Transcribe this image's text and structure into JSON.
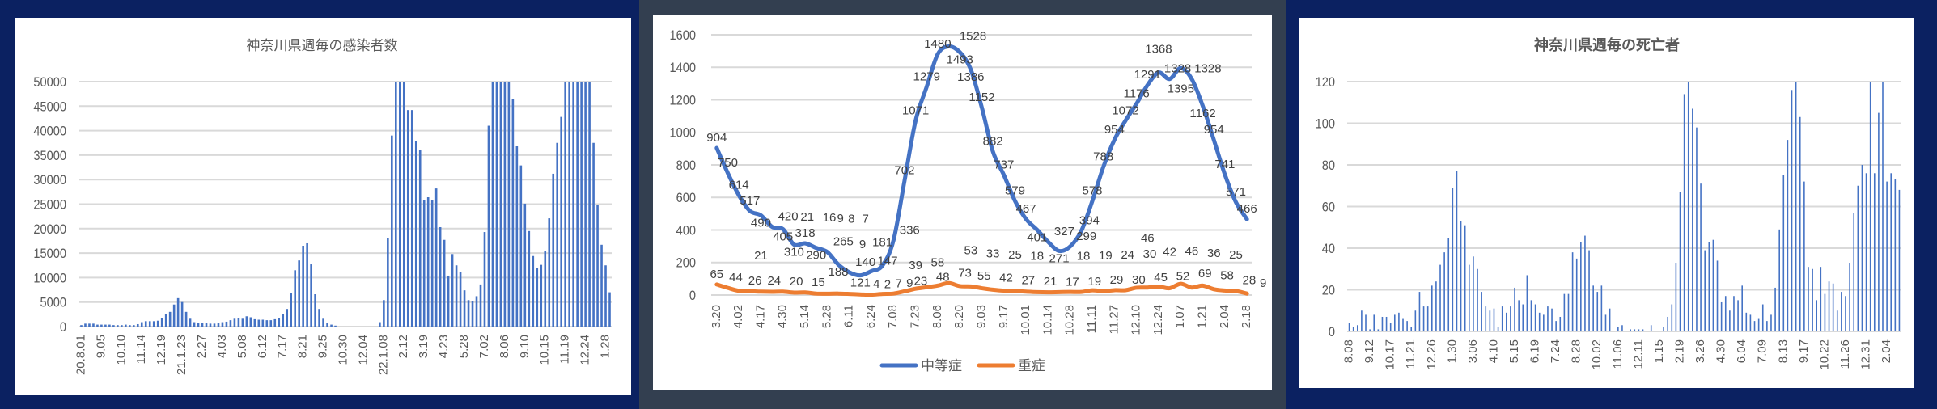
{
  "chart_data": [
    {
      "type": "bar",
      "title": "神奈川県週毎の感染者数",
      "xlabel": "",
      "ylabel": "",
      "ylim": [
        0,
        50000
      ],
      "ytick_step": 5000,
      "grid": true,
      "color": "#4472c4",
      "x_tick_labels": [
        "20.8.01",
        "9.05",
        "10.10",
        "11.14",
        "12.19",
        "21.1.23",
        "2.27",
        "4.03",
        "5.08",
        "6.12",
        "7.17",
        "8.21",
        "9.25",
        "10.30",
        "12.04",
        "22.1.08",
        "2.12",
        "3.19",
        "4.23",
        "5.28",
        "7.02",
        "8.06",
        "9.10",
        "10.15",
        "11.19",
        "12.24",
        "1.28"
      ],
      "label_every": 5,
      "values": [
        300,
        600,
        600,
        600,
        400,
        400,
        400,
        400,
        300,
        300,
        300,
        400,
        300,
        300,
        500,
        900,
        1100,
        1100,
        1100,
        1200,
        1800,
        2600,
        3000,
        4500,
        5800,
        5000,
        3000,
        1600,
        900,
        800,
        800,
        700,
        600,
        600,
        700,
        900,
        1000,
        1300,
        1600,
        1700,
        1600,
        2100,
        1900,
        1500,
        1400,
        1400,
        1300,
        1300,
        1500,
        1800,
        2600,
        3600,
        6900,
        11500,
        13500,
        16500,
        17000,
        12700,
        6600,
        3600,
        1600,
        800,
        400,
        200,
        0,
        0,
        0,
        0,
        0,
        0,
        0,
        0,
        0,
        0,
        900,
        5400,
        18000,
        39000,
        50000,
        50000,
        50000,
        44200,
        44200,
        37800,
        36000,
        25800,
        26400,
        25800,
        28200,
        20300,
        17700,
        10400,
        14800,
        12500,
        11200,
        7400,
        5400,
        5200,
        6200,
        8600,
        19300,
        41000,
        50000,
        50000,
        50000,
        50000,
        50000,
        46500,
        36800,
        32900,
        25100,
        19500,
        14400,
        12000,
        12600,
        15400,
        22100,
        31200,
        37500,
        42800,
        50000,
        50000,
        50000,
        50000,
        50000,
        50000,
        50000,
        37500,
        24800,
        16700,
        12500,
        7000
      ]
    },
    {
      "type": "line",
      "title": "",
      "ylim": [
        0,
        1600
      ],
      "ytick_step": 200,
      "grid": true,
      "legend_position": "bottom",
      "x_tick_labels": [
        "3.20",
        "4.02",
        "4.17",
        "4.30",
        "5.14",
        "5.28",
        "6.11",
        "6.24",
        "7.08",
        "7.23",
        "8.06",
        "8.20",
        "9.03",
        "9.17",
        "10.01",
        "10.14",
        "10.28",
        "11.11",
        "11.27",
        "12.10",
        "12.24",
        "1.07",
        "1.21",
        "2.04",
        "2.18"
      ],
      "label_every": 2,
      "series": [
        {
          "name": "中等症",
          "color": "#4472c4",
          "values": [
            904,
            750,
            614,
            517,
            490,
            420,
            405,
            310,
            318,
            290,
            265,
            188,
            140,
            121,
            147,
            181,
            336,
            702,
            1071,
            1279,
            1480,
            1528,
            1493,
            1386,
            1152,
            882,
            737,
            579,
            467,
            401,
            327,
            271,
            299,
            394,
            578,
            788,
            954,
            1072,
            1176,
            1291,
            1368,
            1328,
            1395,
            1328,
            1162,
            954,
            741,
            571,
            466
          ]
        },
        {
          "name": "重症",
          "color": "#ed7d31",
          "values": [
            65,
            44,
            26,
            24,
            21,
            20,
            21,
            15,
            16,
            9,
            8,
            9,
            7,
            4,
            2,
            7,
            9,
            23,
            39,
            48,
            58,
            73,
            55,
            53,
            42,
            33,
            27,
            25,
            21,
            18,
            17,
            18,
            19,
            19,
            29,
            24,
            30,
            30,
            45,
            46,
            52,
            42,
            69,
            46,
            58,
            36,
            28,
            25,
            9
          ]
        }
      ]
    },
    {
      "type": "bar",
      "title": "神奈川県週毎の死亡者",
      "ylim": [
        0,
        120
      ],
      "ytick_step": 20,
      "grid": true,
      "color": "#4472c4",
      "x_tick_labels": [
        "8.08",
        "9.12",
        "10.17",
        "11.21",
        "12.26",
        "1.30",
        "3.06",
        "4.10",
        "5.15",
        "6.19",
        "7.24",
        "8.28",
        "10.02",
        "11.06",
        "12.11",
        "1.15",
        "2.19",
        "3.26",
        "4.30",
        "6.04",
        "7.09",
        "8.13",
        "9.17",
        "10.22",
        "11.26",
        "12.31",
        "2.04"
      ],
      "label_every": 5,
      "values": [
        4,
        2,
        3,
        10,
        8,
        1,
        8,
        1,
        7,
        7,
        4,
        8,
        9,
        6,
        5,
        2,
        10,
        19,
        12,
        12,
        22,
        24,
        32,
        38,
        45,
        69,
        77,
        53,
        51,
        32,
        36,
        30,
        19,
        12,
        10,
        11,
        2,
        12,
        9,
        12,
        21,
        15,
        13,
        27,
        15,
        13,
        9,
        8,
        12,
        11,
        5,
        7,
        18,
        18,
        38,
        35,
        43,
        46,
        39,
        22,
        19,
        22,
        8,
        11,
        0,
        2,
        3,
        0,
        1,
        1,
        1,
        1,
        0,
        3,
        0,
        0,
        2,
        7,
        13,
        33,
        67,
        114,
        120,
        107,
        98,
        71,
        39,
        43,
        44,
        34,
        14,
        17,
        10,
        17,
        15,
        22,
        9,
        8,
        5,
        6,
        13,
        5,
        8,
        21,
        49,
        75,
        92,
        116,
        120,
        103,
        72,
        31,
        30,
        15,
        31,
        18,
        24,
        23,
        10,
        19,
        17,
        33,
        57,
        70,
        80,
        76,
        120,
        76,
        105,
        120,
        72,
        76,
        73,
        68
      ]
    }
  ]
}
